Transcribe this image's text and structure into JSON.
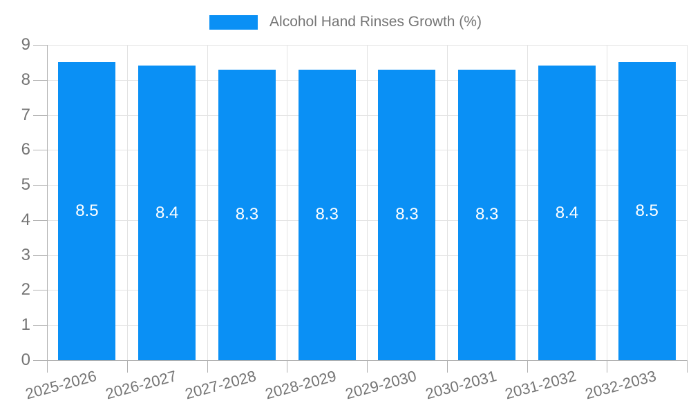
{
  "legend": {
    "label": "Alcohol Hand Rinses Growth (%)"
  },
  "chart_data": {
    "type": "bar",
    "title": "Alcohol Hand Rinses Growth (%)",
    "categories": [
      "2025-2026",
      "2026-2027",
      "2027-2028",
      "2028-2029",
      "2029-2030",
      "2030-2031",
      "2031-2032",
      "2032-2033"
    ],
    "values": [
      8.5,
      8.4,
      8.3,
      8.3,
      8.3,
      8.3,
      8.4,
      8.5
    ],
    "value_labels": [
      "8.5",
      "8.4",
      "8.3",
      "8.3",
      "8.3",
      "8.3",
      "8.4",
      "8.5"
    ],
    "y_ticks": [
      "0",
      "1",
      "2",
      "3",
      "4",
      "5",
      "6",
      "7",
      "8",
      "9"
    ],
    "ylim": [
      0,
      9
    ],
    "xlabel": "",
    "ylabel": "",
    "grid": true,
    "legend_position": "top-center",
    "bar_color": "#0a90f5",
    "bar_label_color": "#ffffff",
    "axis_color": "#b0b0b0",
    "grid_color": "#e3e3e3",
    "tick_text_color": "#737373"
  }
}
